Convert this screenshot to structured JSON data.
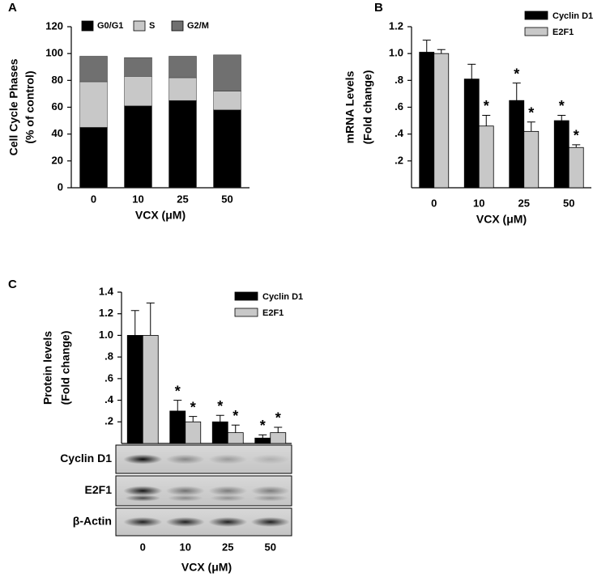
{
  "chart_data": [
    {
      "type": "stacked_bar",
      "panel_label": "A",
      "ylabel": [
        "Cell Cycle Phases",
        "(% of control)"
      ],
      "xlabel": "VCX (μM)",
      "categories": [
        "0",
        "10",
        "25",
        "50"
      ],
      "series": [
        {
          "name": "G0/G1",
          "color": "#000000",
          "values": [
            45,
            61,
            65,
            58
          ]
        },
        {
          "name": "S",
          "color": "#c8c8c8",
          "values": [
            34,
            22,
            17,
            14
          ]
        },
        {
          "name": "G2/M",
          "color": "#707070",
          "values": [
            19,
            14,
            16,
            27
          ]
        }
      ],
      "ylim": [
        0,
        120
      ],
      "yticks": [
        0,
        20,
        40,
        60,
        80,
        100,
        120
      ]
    },
    {
      "type": "bar",
      "panel_label": "B",
      "ylabel": [
        "mRNA Levels",
        "(Fold change)"
      ],
      "xlabel": "VCX (μM)",
      "categories": [
        "0",
        "10",
        "25",
        "50"
      ],
      "series": [
        {
          "name": "Cyclin D1",
          "color": "#000000",
          "values": [
            1.01,
            0.81,
            0.65,
            0.5
          ],
          "errors": [
            0.09,
            0.11,
            0.13,
            0.04
          ],
          "annotations": [
            null,
            null,
            "*",
            "*"
          ]
        },
        {
          "name": "E2F1",
          "color": "#c8c8c8",
          "values": [
            1.0,
            0.46,
            0.42,
            0.3
          ],
          "errors": [
            0.03,
            0.08,
            0.07,
            0.02
          ],
          "annotations": [
            null,
            "*",
            "*",
            "*"
          ]
        }
      ],
      "ylim": [
        0,
        1.2
      ],
      "yticks": [
        {
          "value": 0.2,
          "label": ".2"
        },
        {
          "value": 0.4,
          "label": ".4"
        },
        {
          "value": 0.6,
          "label": ".6"
        },
        {
          "value": 0.8,
          "label": ".8"
        },
        {
          "value": 1.0,
          "label": "1.0"
        },
        {
          "value": 1.2,
          "label": "1.2"
        }
      ]
    },
    {
      "type": "bar",
      "panel_label": "C",
      "ylabel": [
        "Protein levels",
        "(Fold change)"
      ],
      "xlabel": "VCX (μM)",
      "categories": [
        "0",
        "10",
        "25",
        "50"
      ],
      "series": [
        {
          "name": "Cyclin D1",
          "color": "#000000",
          "values": [
            1.0,
            0.3,
            0.2,
            0.05
          ],
          "errors": [
            0.23,
            0.1,
            0.06,
            0.03
          ],
          "annotations": [
            null,
            "*",
            "*",
            "*"
          ]
        },
        {
          "name": "E2F1",
          "color": "#c8c8c8",
          "values": [
            1.0,
            0.2,
            0.1,
            0.1
          ],
          "errors": [
            0.3,
            0.05,
            0.07,
            0.05
          ],
          "annotations": [
            null,
            "*",
            "*",
            "*"
          ]
        }
      ],
      "ylim": [
        0,
        1.4
      ],
      "yticks": [
        {
          "value": 0.2,
          "label": ".2"
        },
        {
          "value": 0.4,
          "label": ".4"
        },
        {
          "value": 0.6,
          "label": ".6"
        },
        {
          "value": 0.8,
          "label": ".8"
        },
        {
          "value": 1.0,
          "label": "1.0"
        },
        {
          "value": 1.2,
          "label": "1.2"
        },
        {
          "value": 1.4,
          "label": "1.4"
        }
      ],
      "blot_rows": [
        "Cyclin D1",
        "E2F1",
        "β-Actin"
      ]
    }
  ]
}
